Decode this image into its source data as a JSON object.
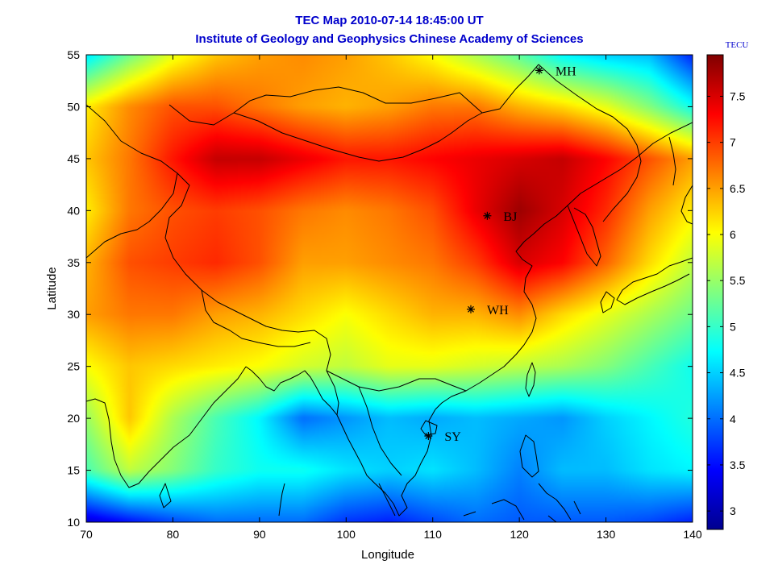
{
  "chart_data": {
    "type": "heatmap",
    "title": "TEC Map 2010-07-14 18:45:00 UT",
    "subtitle": "Institute of Geology and Geophysics Chinese Academy of Sciences",
    "xlabel": "Longitude",
    "ylabel": "Latitude",
    "xlim": [
      70,
      140
    ],
    "ylim": [
      10,
      55
    ],
    "xticks": [
      70,
      80,
      90,
      100,
      110,
      120,
      130,
      140
    ],
    "yticks": [
      10,
      15,
      20,
      25,
      30,
      35,
      40,
      45,
      50,
      55
    ],
    "colorbar": {
      "label": "TECU",
      "range": [
        2.8,
        7.95
      ],
      "ticks": [
        3,
        3.5,
        4,
        4.5,
        5,
        5.5,
        6,
        6.5,
        7,
        7.5
      ],
      "colormap": "jet"
    },
    "stations": [
      {
        "name": "MH",
        "lon": 122.3,
        "lat": 53.5
      },
      {
        "name": "BJ",
        "lon": 116.3,
        "lat": 39.5
      },
      {
        "name": "WH",
        "lon": 114.4,
        "lat": 30.5
      },
      {
        "name": "SY",
        "lon": 109.5,
        "lat": 18.3
      }
    ],
    "tec_grid": {
      "lons": [
        70,
        75,
        80,
        85,
        90,
        95,
        100,
        105,
        110,
        115,
        120,
        125,
        130,
        135,
        140
      ],
      "lats": [
        55,
        50,
        45,
        40,
        35,
        30,
        25,
        20,
        15,
        10
      ],
      "values": [
        [
          4.6,
          5.3,
          5.9,
          6.3,
          6.5,
          6.6,
          6.5,
          6.3,
          6.0,
          5.6,
          5.2,
          4.7,
          4.5,
          4.4,
          3.6
        ],
        [
          6.1,
          6.6,
          6.9,
          6.9,
          6.7,
          6.5,
          6.4,
          6.5,
          6.7,
          6.7,
          6.4,
          6.2,
          5.9,
          5.4,
          4.8
        ],
        [
          6.3,
          6.7,
          7.2,
          7.6,
          7.6,
          7.4,
          7.2,
          7.2,
          7.3,
          7.4,
          7.5,
          7.6,
          7.3,
          6.9,
          6.5
        ],
        [
          6.1,
          6.7,
          6.9,
          7.0,
          6.9,
          6.7,
          6.6,
          6.7,
          6.9,
          7.4,
          7.8,
          7.5,
          7.1,
          6.5,
          6.1
        ],
        [
          6.4,
          6.9,
          7.0,
          7.1,
          6.9,
          6.5,
          6.5,
          6.6,
          6.7,
          7.0,
          7.5,
          7.3,
          6.8,
          6.2,
          5.7
        ],
        [
          6.5,
          6.7,
          6.7,
          6.5,
          6.4,
          6.2,
          6.0,
          6.2,
          6.4,
          6.4,
          6.6,
          6.2,
          5.9,
          5.6,
          5.3
        ],
        [
          6.0,
          6.3,
          6.2,
          6.1,
          6.0,
          5.8,
          5.7,
          5.9,
          5.9,
          5.8,
          5.7,
          5.6,
          5.4,
          5.1,
          4.8
        ],
        [
          5.5,
          6.3,
          5.6,
          5.1,
          4.7,
          4.0,
          4.2,
          4.4,
          4.3,
          4.4,
          4.3,
          4.2,
          4.5,
          4.7,
          4.9
        ],
        [
          5.1,
          5.7,
          5.4,
          5.0,
          4.8,
          4.8,
          4.6,
          4.5,
          4.6,
          4.4,
          4.1,
          4.4,
          4.4,
          4.6,
          4.7
        ],
        [
          3.2,
          3.5,
          3.8,
          4.0,
          4.0,
          4.0,
          3.7,
          3.6,
          3.8,
          4.0,
          3.9,
          3.9,
          3.9,
          3.8,
          3.6
        ]
      ]
    }
  }
}
